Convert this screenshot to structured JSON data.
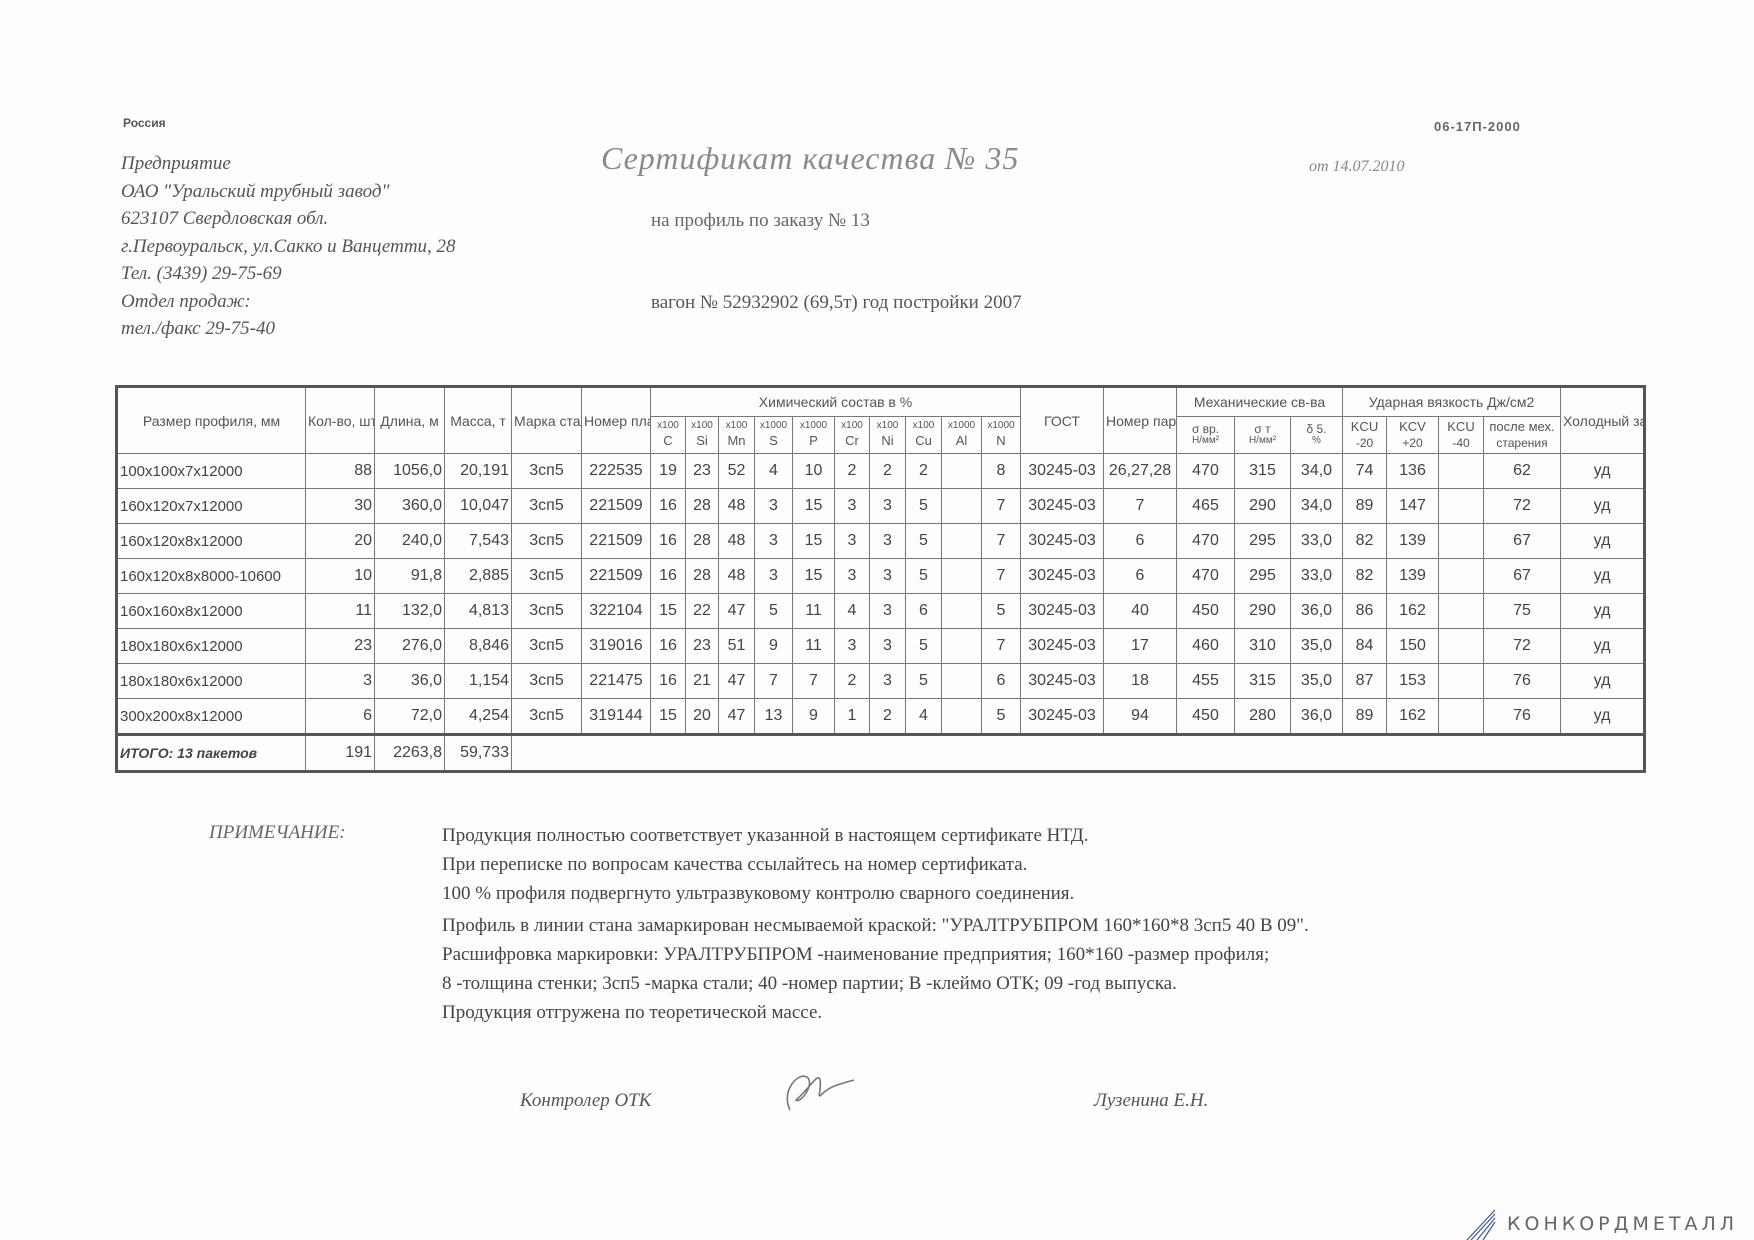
{
  "header": {
    "country": "Россия",
    "form_code": "06-17П-2000",
    "company_lines": [
      "Предприятие",
      "ОАО \"Уральский трубный завод\"",
      "623107 Свердловская обл.",
      "г.Первоуральск, ул.Сакко и Ванцетти, 28",
      "Тел. (3439) 29-75-69",
      "Отдел продаж:",
      "тел./факс  29-75-40"
    ],
    "title": "Сертификат качества  № 35",
    "date": "от 14.07.2010",
    "order": "на профиль по заказу № 13",
    "wagon": "вагон № 52932902 (69,5т) год постройки 2007"
  },
  "table": {
    "headers": {
      "size": "Размер профиля, мм",
      "qty": "Кол-во, шт",
      "length": "Длина, м",
      "mass": "Масса, т",
      "grade": "Марка стали",
      "heat": "Номер плавки",
      "chem": "Химический состав  в %",
      "gost": "ГОСТ",
      "batch": "Номер партии",
      "mech": "Механические св-ва",
      "impact": "Ударная вязкость Дж/см2",
      "bend": "Холодный загиб"
    },
    "chem_columns": [
      {
        "mult": "x100",
        "el": "C"
      },
      {
        "mult": "x100",
        "el": "Si"
      },
      {
        "mult": "x100",
        "el": "Mn"
      },
      {
        "mult": "x1000",
        "el": "S"
      },
      {
        "mult": "x1000",
        "el": "P"
      },
      {
        "mult": "x100",
        "el": "Cr"
      },
      {
        "mult": "x100",
        "el": "Ni"
      },
      {
        "mult": "x100",
        "el": "Cu"
      },
      {
        "mult": "x1000",
        "el": "Al"
      },
      {
        "mult": "x1000",
        "el": "N"
      }
    ],
    "mech_columns": [
      {
        "name": "σ вр.",
        "unit": "Н/мм²"
      },
      {
        "name": "σ т",
        "unit": "Н/мм²"
      },
      {
        "name": "δ 5.",
        "unit": "%"
      }
    ],
    "impact_columns": [
      {
        "name": "KCU",
        "unit": "-20"
      },
      {
        "name": "KCV",
        "unit": "+20"
      },
      {
        "name": "KCU",
        "unit": "-40"
      },
      {
        "name": "после мех.",
        "unit": "старения"
      }
    ],
    "rows": [
      [
        "100x100x7x12000",
        "88",
        "1056,0",
        "20,191",
        "3сп5",
        "222535",
        "19",
        "23",
        "52",
        "4",
        "10",
        "2",
        "2",
        "2",
        "",
        "8",
        "30245-03",
        "26,27,28",
        "470",
        "315",
        "34,0",
        "74",
        "136",
        "",
        "62",
        "уд"
      ],
      [
        "160x120x7x12000",
        "30",
        "360,0",
        "10,047",
        "3сп5",
        "221509",
        "16",
        "28",
        "48",
        "3",
        "15",
        "3",
        "3",
        "5",
        "",
        "7",
        "30245-03",
        "7",
        "465",
        "290",
        "34,0",
        "89",
        "147",
        "",
        "72",
        "уд"
      ],
      [
        "160x120x8x12000",
        "20",
        "240,0",
        "7,543",
        "3сп5",
        "221509",
        "16",
        "28",
        "48",
        "3",
        "15",
        "3",
        "3",
        "5",
        "",
        "7",
        "30245-03",
        "6",
        "470",
        "295",
        "33,0",
        "82",
        "139",
        "",
        "67",
        "уд"
      ],
      [
        "160x120x8x8000-10600",
        "10",
        "91,8",
        "2,885",
        "3сп5",
        "221509",
        "16",
        "28",
        "48",
        "3",
        "15",
        "3",
        "3",
        "5",
        "",
        "7",
        "30245-03",
        "6",
        "470",
        "295",
        "33,0",
        "82",
        "139",
        "",
        "67",
        "уд"
      ],
      [
        "160x160x8x12000",
        "11",
        "132,0",
        "4,813",
        "3сп5",
        "322104",
        "15",
        "22",
        "47",
        "5",
        "11",
        "4",
        "3",
        "6",
        "",
        "5",
        "30245-03",
        "40",
        "450",
        "290",
        "36,0",
        "86",
        "162",
        "",
        "75",
        "уд"
      ],
      [
        "180x180x6x12000",
        "23",
        "276,0",
        "8,846",
        "3сп5",
        "319016",
        "16",
        "23",
        "51",
        "9",
        "11",
        "3",
        "3",
        "5",
        "",
        "7",
        "30245-03",
        "17",
        "460",
        "310",
        "35,0",
        "84",
        "150",
        "",
        "72",
        "уд"
      ],
      [
        "180x180x6x12000",
        "3",
        "36,0",
        "1,154",
        "3сп5",
        "221475",
        "16",
        "21",
        "47",
        "7",
        "7",
        "2",
        "3",
        "5",
        "",
        "6",
        "30245-03",
        "18",
        "455",
        "315",
        "35,0",
        "87",
        "153",
        "",
        "76",
        "уд"
      ],
      [
        "300x200x8x12000",
        "6",
        "72,0",
        "4,254",
        "3сп5",
        "319144",
        "15",
        "20",
        "47",
        "13",
        "9",
        "1",
        "2",
        "4",
        "",
        "5",
        "30245-03",
        "94",
        "450",
        "280",
        "36,0",
        "89",
        "162",
        "",
        "76",
        "уд"
      ]
    ],
    "total": {
      "label": "ИТОГО: 13 пакетов",
      "qty": "191",
      "length": "2263,8",
      "mass": "59,733"
    }
  },
  "notes": {
    "label": "ПРИМЕЧАНИЕ:",
    "lines": [
      "Продукция полностью соответствует указанной в настоящем сертификате НТД.",
      "При переписке по вопросам качества ссылайтесь на номер сертификата.",
      "100 % профиля подвергнуто ультразвуковому контролю сварного соединения.",
      "Профиль в линии стана замаркирован несмываемой краской: \"УРАЛТРУБПРОМ  160*160*8  3сп5  40  В  09\".",
      "Расшифровка маркировки: УРАЛТРУБПРОМ -наименование предприятия; 160*160 -размер профиля;",
      "8 -толщина стенки; 3сп5 -марка стали; 40 -номер партии; В -клеймо ОТК; 09 -год выпуска.",
      "Продукция отгружена по теоретической массе."
    ]
  },
  "signatures": {
    "controller": "Контролер ОТК",
    "inspector": "Лузенина Е.Н."
  },
  "logo": {
    "text": "КОНКОРДМЕТАЛЛ",
    "color": "#3a5a9a"
  }
}
